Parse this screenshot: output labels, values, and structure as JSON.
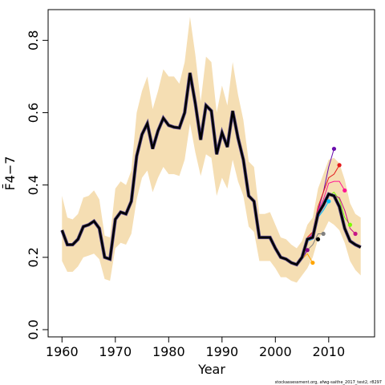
{
  "chart_data": {
    "type": "line",
    "title": "",
    "xlabel": "Year",
    "ylabel": "F̄4−7",
    "xlim": [
      1957.4,
      2018.6
    ],
    "ylim": [
      -0.02,
      0.885
    ],
    "x_ticks": [
      1960,
      1970,
      1980,
      1990,
      2000,
      2010
    ],
    "y_ticks": [
      0.0,
      0.2,
      0.4,
      0.6,
      0.8
    ],
    "x_tick_labels": [
      "1960",
      "1970",
      "1980",
      "1990",
      "2000",
      "2010"
    ],
    "y_tick_labels": [
      "0.0",
      "0.2",
      "0.4",
      "0.6",
      "0.8"
    ],
    "grid": false,
    "legend": "none",
    "footnote": "stockassessment.org, afwg-saithe_2017_test2, r8297",
    "confidence_band": {
      "color": "#f5deb3",
      "x": [
        1960,
        1961,
        1962,
        1963,
        1964,
        1965,
        1966,
        1967,
        1968,
        1969,
        1970,
        1971,
        1972,
        1973,
        1974,
        1975,
        1976,
        1977,
        1978,
        1979,
        1980,
        1981,
        1982,
        1983,
        1984,
        1985,
        1986,
        1987,
        1988,
        1989,
        1990,
        1991,
        1992,
        1993,
        1994,
        1995,
        1996,
        1997,
        1998,
        1999,
        2000,
        2001,
        2002,
        2003,
        2004,
        2005,
        2006,
        2007,
        2008,
        2009,
        2010,
        2011,
        2012,
        2013,
        2014,
        2015,
        2016
      ],
      "upper": [
        0.37,
        0.31,
        0.305,
        0.32,
        0.365,
        0.37,
        0.385,
        0.36,
        0.26,
        0.255,
        0.39,
        0.41,
        0.4,
        0.44,
        0.6,
        0.66,
        0.7,
        0.61,
        0.66,
        0.72,
        0.7,
        0.7,
        0.68,
        0.74,
        0.865,
        0.76,
        0.63,
        0.755,
        0.74,
        0.6,
        0.675,
        0.62,
        0.74,
        0.65,
        0.58,
        0.465,
        0.45,
        0.32,
        0.32,
        0.325,
        0.29,
        0.255,
        0.25,
        0.235,
        0.225,
        0.245,
        0.29,
        0.31,
        0.39,
        0.43,
        0.47,
        0.475,
        0.46,
        0.415,
        0.35,
        0.32,
        0.31
      ],
      "lower": [
        0.19,
        0.16,
        0.16,
        0.175,
        0.2,
        0.205,
        0.21,
        0.195,
        0.14,
        0.135,
        0.225,
        0.24,
        0.235,
        0.265,
        0.36,
        0.42,
        0.44,
        0.38,
        0.42,
        0.45,
        0.43,
        0.43,
        0.425,
        0.47,
        0.57,
        0.49,
        0.425,
        0.485,
        0.475,
        0.37,
        0.42,
        0.39,
        0.47,
        0.41,
        0.37,
        0.285,
        0.27,
        0.19,
        0.19,
        0.19,
        0.17,
        0.145,
        0.145,
        0.135,
        0.13,
        0.15,
        0.17,
        0.2,
        0.25,
        0.27,
        0.3,
        0.29,
        0.275,
        0.24,
        0.19,
        0.165,
        0.15
      ]
    },
    "series": [
      {
        "color": "#000000",
        "x": [
          1960,
          1961,
          1962,
          1963,
          1964,
          1965,
          1966,
          1967,
          1968,
          1969,
          1970,
          1971,
          1972,
          1973,
          1974,
          1975,
          1976,
          1977,
          1978,
          1979,
          1980,
          1981,
          1982,
          1983,
          1984,
          1985,
          1986,
          1987,
          1988,
          1989,
          1990,
          1991,
          1992,
          1993,
          1994,
          1995,
          1996,
          1997,
          1998,
          1999,
          2000,
          2001,
          2002,
          2003,
          2004,
          2005,
          2006,
          2007,
          2008,
          2009,
          2010,
          2011,
          2012,
          2013,
          2014,
          2015,
          2016
        ],
        "values": [
          0.275,
          0.235,
          0.235,
          0.25,
          0.285,
          0.29,
          0.3,
          0.28,
          0.2,
          0.195,
          0.305,
          0.325,
          0.32,
          0.355,
          0.48,
          0.54,
          0.57,
          0.5,
          0.55,
          0.585,
          0.565,
          0.56,
          0.558,
          0.6,
          0.71,
          0.625,
          0.525,
          0.62,
          0.605,
          0.485,
          0.545,
          0.505,
          0.605,
          0.53,
          0.47,
          0.37,
          0.355,
          0.255,
          0.255,
          0.255,
          0.225,
          0.2,
          0.195,
          0.185,
          0.18,
          0.2,
          0.25,
          0.255,
          0.32,
          0.345,
          0.375,
          0.37,
          0.34,
          0.28,
          0.245,
          0.235,
          0.228
        ]
      },
      {
        "color": "#6a0dad",
        "x": [
          2006,
          2007,
          2008,
          2009,
          2010,
          2011
        ],
        "values": [
          0.25,
          0.265,
          0.33,
          0.38,
          0.45,
          0.5
        ]
      },
      {
        "color": "#e41a1c",
        "x": [
          2006,
          2007,
          2008,
          2009,
          2010,
          2011,
          2012
        ],
        "values": [
          0.255,
          0.27,
          0.34,
          0.38,
          0.42,
          0.43,
          0.455
        ]
      },
      {
        "color": "#ff1493",
        "x": [
          2006,
          2007,
          2008,
          2009,
          2010,
          2011,
          2012,
          2013
        ],
        "values": [
          0.25,
          0.265,
          0.33,
          0.36,
          0.405,
          0.41,
          0.41,
          0.385
        ]
      },
      {
        "color": "#00bfff",
        "x": [
          2005,
          2006,
          2007,
          2008,
          2009,
          2010
        ],
        "values": [
          0.2,
          0.245,
          0.25,
          0.31,
          0.33,
          0.355
        ]
      },
      {
        "color": "#7cfc00",
        "x": [
          2010,
          2011,
          2012,
          2013,
          2014
        ],
        "values": [
          0.37,
          0.38,
          0.36,
          0.31,
          0.29
        ]
      },
      {
        "color": "#808080",
        "x": [
          2005,
          2006,
          2007,
          2008,
          2009
        ],
        "values": [
          0.195,
          0.22,
          0.235,
          0.265,
          0.265
        ]
      },
      {
        "color": "#ffa500",
        "x": [
          2005,
          2006,
          2007
        ],
        "values": [
          0.195,
          0.21,
          0.185
        ]
      },
      {
        "color": "#800080",
        "x": [
          2004,
          2005,
          2006
        ],
        "values": [
          0.185,
          0.195,
          0.22
        ]
      },
      {
        "color": "#c71585",
        "x": [
          2011,
          2012,
          2013,
          2014,
          2015
        ],
        "values": [
          0.37,
          0.365,
          0.33,
          0.28,
          0.265
        ]
      }
    ],
    "endpoints": [
      {
        "x": 2006,
        "y": 0.22,
        "color": "#800080"
      },
      {
        "x": 2007,
        "y": 0.185,
        "color": "#ffa500"
      },
      {
        "x": 2008,
        "y": 0.25,
        "color": "#000000"
      },
      {
        "x": 2009,
        "y": 0.265,
        "color": "#808080"
      },
      {
        "x": 2010,
        "y": 0.355,
        "color": "#00bfff"
      },
      {
        "x": 2011,
        "y": 0.5,
        "color": "#6a0dad"
      },
      {
        "x": 2012,
        "y": 0.455,
        "color": "#e41a1c"
      },
      {
        "x": 2013,
        "y": 0.385,
        "color": "#ff1493"
      },
      {
        "x": 2014,
        "y": 0.29,
        "color": "#7cfc00"
      },
      {
        "x": 2015,
        "y": 0.265,
        "color": "#c71585"
      }
    ]
  }
}
